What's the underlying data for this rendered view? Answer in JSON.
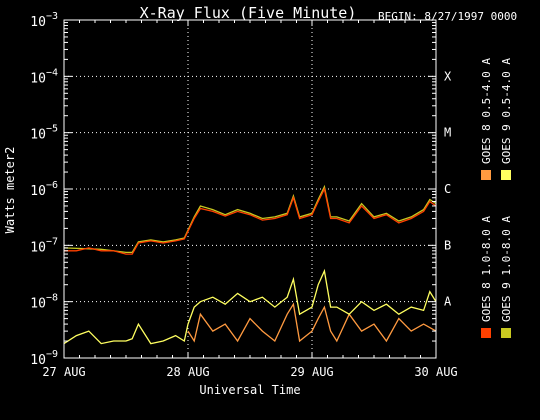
{
  "chart_data": {
    "type": "line",
    "title": "X-Ray Flux (Five Minute)",
    "begin_label": "BEGIN: 8/27/1997 0000",
    "xlabel": "Universal Time",
    "ylabel": "Watts meter2",
    "y_scale": "log",
    "ylim": [
      1e-09,
      0.001
    ],
    "y_ticks": [
      {
        "base": "10",
        "exp": "−3"
      },
      {
        "base": "10",
        "exp": "−4"
      },
      {
        "base": "10",
        "exp": "−5"
      },
      {
        "base": "10",
        "exp": "−6"
      },
      {
        "base": "10",
        "exp": "−7"
      },
      {
        "base": "10",
        "exp": "−8"
      },
      {
        "base": "10",
        "exp": "−9"
      }
    ],
    "x_range_days": [
      0,
      3
    ],
    "x_ticks": [
      "27 AUG",
      "28 AUG",
      "29 AUG",
      "30 AUG"
    ],
    "flare_classes": [
      {
        "label": "X",
        "flux": 0.0001
      },
      {
        "label": "M",
        "flux": 1e-05
      },
      {
        "label": "C",
        "flux": 1e-06
      },
      {
        "label": "B",
        "flux": 1e-07
      },
      {
        "label": "A",
        "flux": 1e-08
      }
    ],
    "grid": true,
    "legend_position": "right-vertical",
    "series": [
      {
        "name": "GOES 8 1.0-8.0 A",
        "color": "#ff4000",
        "x": [
          0,
          0.1,
          0.2,
          0.3,
          0.4,
          0.5,
          0.55,
          0.6,
          0.7,
          0.8,
          0.9,
          0.97,
          1.05,
          1.1,
          1.2,
          1.3,
          1.4,
          1.5,
          1.6,
          1.7,
          1.8,
          1.85,
          1.9,
          2.0,
          2.05,
          2.1,
          2.15,
          2.2,
          2.3,
          2.4,
          2.5,
          2.6,
          2.7,
          2.8,
          2.9,
          2.95,
          3.0
        ],
        "values": [
          8e-08,
          8e-08,
          9e-08,
          8e-08,
          8e-08,
          7e-08,
          7e-08,
          1.1e-07,
          1.2e-07,
          1.1e-07,
          1.2e-07,
          1.3e-07,
          3e-07,
          4.5e-07,
          4e-07,
          3.3e-07,
          4e-07,
          3.5e-07,
          2.8e-07,
          3e-07,
          3.5e-07,
          7e-07,
          3e-07,
          3.5e-07,
          6e-07,
          1e-06,
          3e-07,
          3e-07,
          2.5e-07,
          5e-07,
          3e-07,
          3.5e-07,
          2.5e-07,
          3e-07,
          4e-07,
          6e-07,
          5e-07
        ]
      },
      {
        "name": "GOES 8 0.5-4.0 A",
        "color": "#ff9a40",
        "x": [
          0,
          0.3,
          0.5,
          0.55,
          0.6,
          0.97,
          1.0,
          1.05,
          1.1,
          1.2,
          1.3,
          1.4,
          1.5,
          1.6,
          1.7,
          1.8,
          1.85,
          1.9,
          2.0,
          2.05,
          2.1,
          2.15,
          2.2,
          2.3,
          2.4,
          2.5,
          2.6,
          2.7,
          2.8,
          2.9,
          3.0
        ],
        "values": [
          null,
          null,
          null,
          null,
          null,
          null,
          3e-09,
          2e-09,
          6e-09,
          3e-09,
          4e-09,
          2e-09,
          5e-09,
          3e-09,
          2e-09,
          6e-09,
          9e-09,
          2e-09,
          3e-09,
          5e-09,
          8e-09,
          3e-09,
          2e-09,
          6e-09,
          3e-09,
          4e-09,
          2e-09,
          5e-09,
          3e-09,
          4e-09,
          3e-09
        ]
      },
      {
        "name": "GOES 9 0.5-4.0 A",
        "color": "#ffff60",
        "x": [
          0,
          0.1,
          0.2,
          0.3,
          0.4,
          0.5,
          0.55,
          0.6,
          0.7,
          0.8,
          0.9,
          0.97,
          1.0,
          1.05,
          1.1,
          1.2,
          1.3,
          1.4,
          1.5,
          1.6,
          1.7,
          1.8,
          1.85,
          1.9,
          2.0,
          2.05,
          2.1,
          2.15,
          2.2,
          2.3,
          2.4,
          2.5,
          2.6,
          2.7,
          2.8,
          2.9,
          2.95,
          3.0
        ],
        "values": [
          1.8e-09,
          2.5e-09,
          3e-09,
          1.8e-09,
          2e-09,
          2e-09,
          2.2e-09,
          4e-09,
          1.8e-09,
          2e-09,
          2.5e-09,
          2e-09,
          4e-09,
          8e-09,
          1e-08,
          1.2e-08,
          9e-09,
          1.4e-08,
          1e-08,
          1.2e-08,
          8e-09,
          1.2e-08,
          2.5e-08,
          6e-09,
          8e-09,
          2e-08,
          3.5e-08,
          8e-09,
          8e-09,
          6e-09,
          1e-08,
          7e-09,
          9e-09,
          6e-09,
          8e-09,
          7e-09,
          1.5e-08,
          1e-08
        ]
      },
      {
        "name": "GOES 9 1.0-8.0 A",
        "color": "#c8c820",
        "x": [
          0,
          0.3,
          0.5,
          0.55,
          0.6,
          0.7,
          0.8,
          0.9,
          0.97,
          1.05,
          1.1,
          1.2,
          1.3,
          1.4,
          1.5,
          1.6,
          1.7,
          1.8,
          1.85,
          1.9,
          2.0,
          2.05,
          2.1,
          2.15,
          2.2,
          2.3,
          2.4,
          2.5,
          2.6,
          2.7,
          2.8,
          2.9,
          2.95,
          3.0
        ],
        "values": [
          9e-08,
          8.5e-08,
          7.5e-08,
          7.5e-08,
          1.15e-07,
          1.25e-07,
          1.15e-07,
          1.25e-07,
          1.35e-07,
          3.2e-07,
          5e-07,
          4.3e-07,
          3.5e-07,
          4.3e-07,
          3.7e-07,
          3e-07,
          3.2e-07,
          3.7e-07,
          7.5e-07,
          3.2e-07,
          3.7e-07,
          6.5e-07,
          1.1e-06,
          3.2e-07,
          3.2e-07,
          2.7e-07,
          5.5e-07,
          3.2e-07,
          3.7e-07,
          2.7e-07,
          3.2e-07,
          4.3e-07,
          6.5e-07,
          5.5e-07
        ]
      }
    ]
  }
}
